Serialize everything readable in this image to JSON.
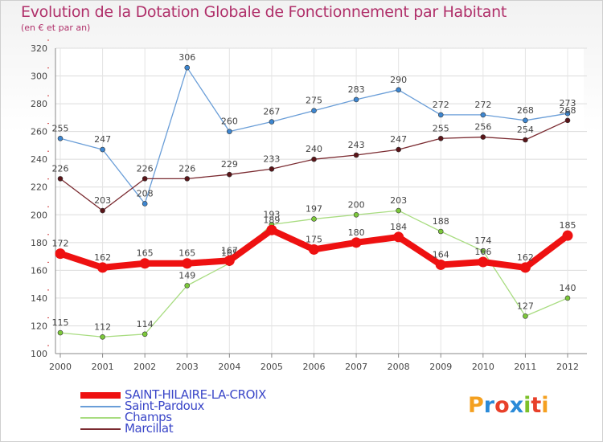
{
  "title": "Evolution de la Dotation Globale de Fonctionnement par Habitant",
  "subtitle": "(en € et par an)",
  "logo": {
    "text": "Proxiti",
    "colors": [
      "#f4a020",
      "#2a8ad8",
      "#e8402a",
      "#2a8ad8",
      "#7cc02a",
      "#e8402a",
      "#f4a020"
    ]
  },
  "chart_data": {
    "type": "line",
    "title": "Evolution de la Dotation Globale de Fonctionnement par Habitant",
    "ylabel": "en € et par an",
    "xlabel": "",
    "ylim": [
      100,
      320
    ],
    "yticks": [
      100,
      120,
      140,
      160,
      180,
      200,
      220,
      240,
      260,
      280,
      300,
      320
    ],
    "categories": [
      "2000",
      "2001",
      "2002",
      "2003",
      "2004",
      "2005",
      "2006",
      "2007",
      "2008",
      "2009",
      "2010",
      "2011",
      "2012"
    ],
    "series": [
      {
        "name": "Saint-Pardoux",
        "color": "#6a9ed8",
        "marker": "#3d86d0",
        "thick": false,
        "values": [
          255,
          247,
          208,
          306,
          260,
          267,
          275,
          283,
          290,
          272,
          272,
          268,
          273
        ]
      },
      {
        "name": "Marcillat",
        "color": "#7a2a30",
        "marker": "#5a1418",
        "thick": false,
        "values": [
          226,
          203,
          226,
          226,
          229,
          233,
          240,
          243,
          247,
          255,
          256,
          254,
          268
        ]
      },
      {
        "name": "Champs",
        "color": "#a8dc80",
        "marker": "#7cc83a",
        "thick": false,
        "values": [
          115,
          112,
          114,
          149,
          165,
          193,
          197,
          200,
          203,
          188,
          174,
          127,
          140
        ]
      },
      {
        "name": "SAINT-HILAIRE-LA-CROIX",
        "color": "#ee1111",
        "marker": "#ee1111",
        "thick": true,
        "values": [
          172,
          162,
          165,
          165,
          167,
          189,
          175,
          180,
          184,
          164,
          166,
          162,
          185
        ]
      }
    ],
    "legend_order": [
      "SAINT-HILAIRE-LA-CROIX",
      "Saint-Pardoux",
      "Champs",
      "Marcillat"
    ]
  }
}
